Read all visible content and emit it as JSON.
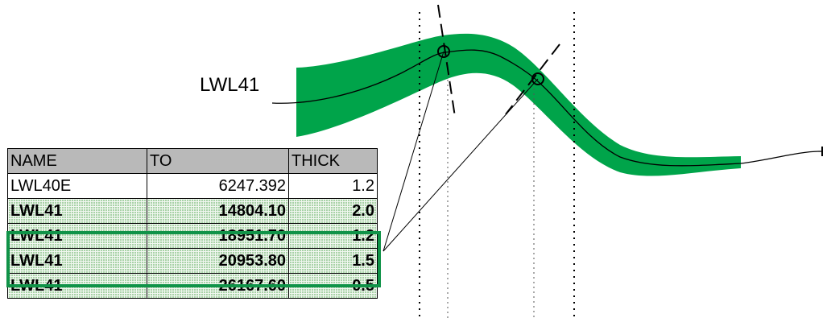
{
  "line_label": "LWL41",
  "colors": {
    "band": "#00a44a",
    "highlight": "#109348",
    "table_header_bg": "#b9b9b9",
    "table_stipple": "#8fc58f"
  },
  "table": {
    "headers": [
      "NAME",
      "TO",
      "THICK"
    ],
    "rows": [
      {
        "name": "LWL40E",
        "to": "6247.392",
        "thick": "1.2",
        "bold": false
      },
      {
        "name": "LWL41",
        "to": "14804.10",
        "thick": "2.0",
        "bold": true
      },
      {
        "name": "LWL41",
        "to": "18951.70",
        "thick": "1.2",
        "bold": true
      },
      {
        "name": "LWL41",
        "to": "20953.80",
        "thick": "1.5",
        "bold": true
      },
      {
        "name": "LWL41",
        "to": "26167.60",
        "thick": "0.5",
        "bold": true
      }
    ]
  }
}
